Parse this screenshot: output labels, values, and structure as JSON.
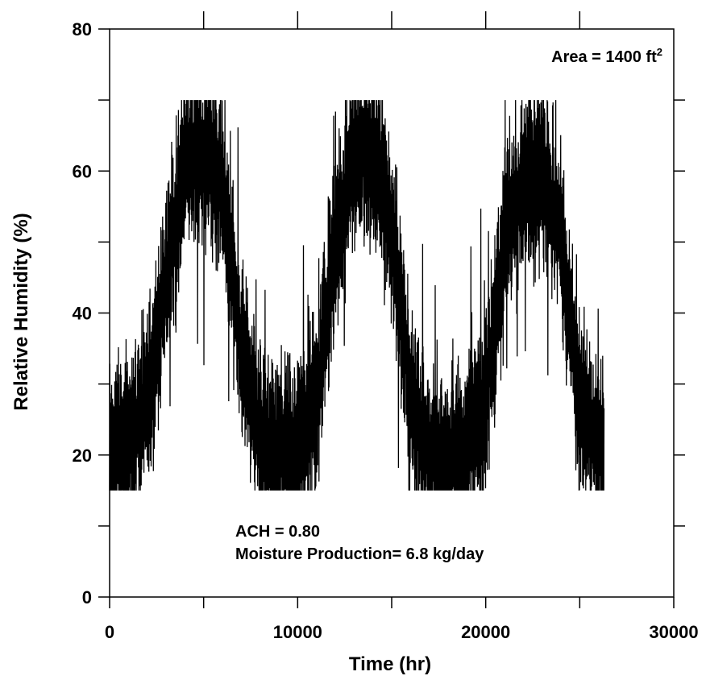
{
  "chart_data": {
    "type": "line",
    "title": "",
    "xlabel": "Time (hr)",
    "ylabel": "Relative Humidity (%)",
    "xlim": [
      0,
      30000
    ],
    "ylim": [
      0,
      80
    ],
    "x_ticks": [
      0,
      10000,
      20000,
      30000
    ],
    "x_tick_labels": [
      "0",
      "10000",
      "20000",
      "30000"
    ],
    "y_ticks": [
      0,
      20,
      40,
      60,
      80
    ],
    "y_tick_labels": [
      "0",
      "20",
      "40",
      "60",
      "80"
    ],
    "grid": false,
    "line_color": "#000000",
    "clip_range": [
      15,
      70
    ],
    "annotations": {
      "area_prefix": "Area = 1400 ft",
      "area_superscript": "2",
      "ach": "ACH = 0.80",
      "moisture": "Moisture Production= 6.8 kg/day"
    },
    "series": [
      {
        "x": [
          0,
          1000,
          2000,
          3000,
          4000,
          5000,
          6000,
          7000,
          8000,
          9000,
          10000,
          11000,
          12000,
          13000,
          14000,
          15000,
          16000,
          17000,
          18000,
          19000,
          20000,
          21000,
          22000,
          23000,
          24000,
          25000,
          26000,
          26300
        ],
        "y": [
          20,
          22,
          27,
          45,
          60,
          62,
          58,
          35,
          22,
          20,
          21,
          28,
          50,
          62,
          63,
          52,
          28,
          20,
          19,
          21,
          28,
          50,
          58,
          60,
          50,
          28,
          21,
          21
        ]
      }
    ]
  }
}
